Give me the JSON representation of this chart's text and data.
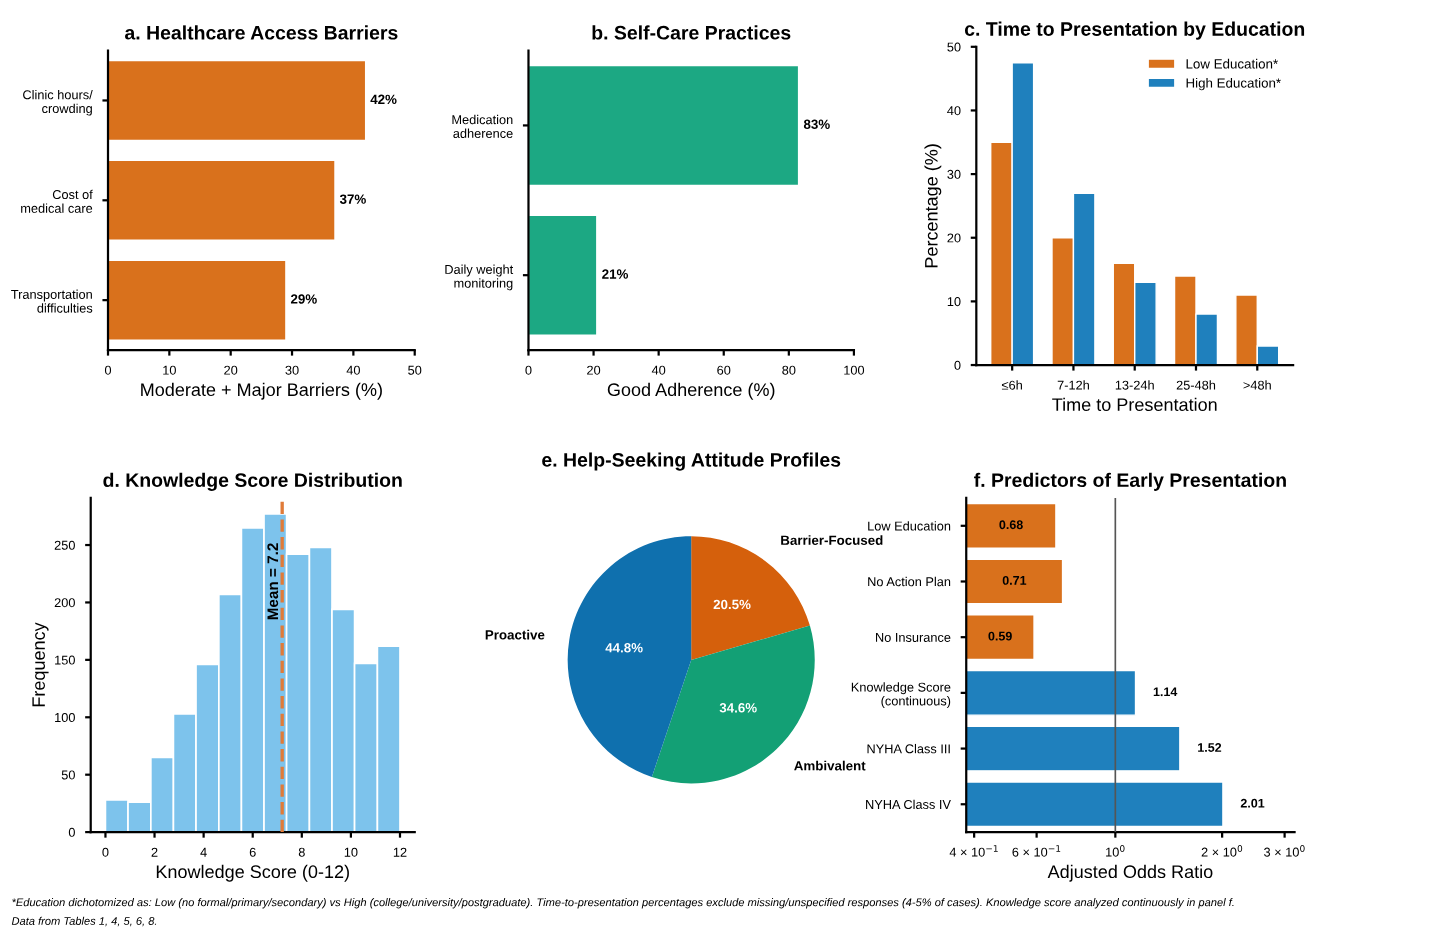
{
  "chart_data": [
    {
      "type": "bar",
      "orientation": "horizontal",
      "title": "a. Healthcare Access Barriers",
      "xlabel": "Moderate + Major Barriers (%)",
      "categories": [
        "Clinic hours/\ncrowding",
        "Cost of\nmedical care",
        "Transportation\ndifficulties"
      ],
      "values": [
        42,
        37,
        29
      ],
      "value_labels": [
        "42%",
        "37%",
        "29%"
      ],
      "color": "#d9711c",
      "xlim": [
        0,
        50
      ],
      "xticks": [
        0,
        10,
        20,
        30,
        40,
        50
      ]
    },
    {
      "type": "bar",
      "orientation": "horizontal",
      "title": "b. Self-Care Practices",
      "xlabel": "Good Adherence (%)",
      "categories": [
        "Medication\nadherence",
        "Daily weight\nmonitoring"
      ],
      "values": [
        83,
        21
      ],
      "value_labels": [
        "83%",
        "21%"
      ],
      "color": "#1ca883",
      "xlim": [
        0,
        100
      ],
      "xticks": [
        0,
        20,
        40,
        60,
        80,
        100
      ]
    },
    {
      "type": "bar",
      "title": "c. Time to Presentation by Education",
      "xlabel": "Time to Presentation",
      "ylabel": "Percentage (%)",
      "categories": [
        "≤6h",
        "7-12h",
        "13-24h",
        "25-48h",
        ">48h"
      ],
      "series": [
        {
          "name": "Low Education*",
          "color": "#d9711c",
          "values": [
            35,
            20,
            16,
            14,
            11
          ]
        },
        {
          "name": "High Education*",
          "color": "#1f80bd",
          "values": [
            47.5,
            27,
            13,
            8,
            3
          ]
        }
      ],
      "ylim": [
        0,
        50
      ],
      "yticks": [
        0,
        10,
        20,
        30,
        40,
        50
      ],
      "legend": "top right"
    },
    {
      "type": "histogram",
      "title": "d. Knowledge Score Distribution",
      "xlabel": "Knowledge Score (0-12)",
      "ylabel": "Frequency",
      "bins": [
        0,
        0.92,
        1.85,
        2.77,
        3.69,
        4.62,
        5.54,
        6.46,
        7.38,
        8.31,
        9.23,
        10.15,
        11.08,
        12
      ],
      "values": [
        28,
        26,
        65,
        103,
        146,
        207,
        265,
        277,
        242,
        248,
        194,
        147,
        162
      ],
      "color": "#7dc3ec",
      "xlim": [
        -0.6,
        12.6
      ],
      "xticks": [
        0,
        2,
        4,
        6,
        8,
        10,
        12
      ],
      "ylim": [
        0,
        291
      ],
      "yticks": [
        0,
        50,
        100,
        150,
        200,
        250
      ],
      "ref_lines": [
        {
          "axis": "x",
          "value": 7.2,
          "label": "Mean = 7.2",
          "color": "#e07b39",
          "line_style": "dashed"
        }
      ]
    },
    {
      "type": "pie",
      "title": "e. Help-Seeking Attitude Profiles",
      "categories": [
        "Barrier-Focused",
        "Ambivalent",
        "Proactive"
      ],
      "values": [
        20.5,
        34.6,
        44.8
      ],
      "value_labels": [
        "20.5%",
        "34.6%",
        "44.8%"
      ],
      "colors": [
        "#d5600c",
        "#13a075",
        "#0f70ae"
      ]
    },
    {
      "type": "bar",
      "orientation": "horizontal",
      "log": "x",
      "title": "f. Predictors of Early Presentation",
      "xlabel": "Adjusted Odds Ratio",
      "categories": [
        "Low Education",
        "No Action Plan",
        "No Insurance",
        "Knowledge Score\n(continuous)",
        "NYHA Class III",
        "NYHA Class IV"
      ],
      "values": [
        0.68,
        0.71,
        0.59,
        1.14,
        1.52,
        2.01
      ],
      "data_labels": true,
      "colors": [
        "#d9711c",
        "#d9711c",
        "#d9711c",
        "#1f80bd",
        "#1f80bd",
        "#1f80bd"
      ],
      "xlim": [
        0.38,
        3.2
      ],
      "xticks": [
        {
          "value": 0.4,
          "label": "4 × 10$^{−1}$"
        },
        {
          "value": 0.6,
          "label": "6 × 10$^{−1}$"
        },
        {
          "value": 1,
          "label": "10$^{0}$"
        },
        {
          "value": 2,
          "label": "2 × 10$^{0}$"
        },
        {
          "value": 3,
          "label": "3 × 10$^{0}$"
        }
      ],
      "ref_lines": [
        {
          "axis": "x",
          "value": 1,
          "color": "#555555",
          "line_style": "solid"
        }
      ],
      "annotations": [
        "*Education dichotomized as: Low (no formal/primary/secondary) vs High (college/university/postgraduate). Time-to-presentation percentages exclude missing/unspecified responses (4-5% of cases). Knowledge score analyzed continuously in panel f.",
        "Data from Tables 1, 4, 5, 6, 8."
      ]
    }
  ]
}
